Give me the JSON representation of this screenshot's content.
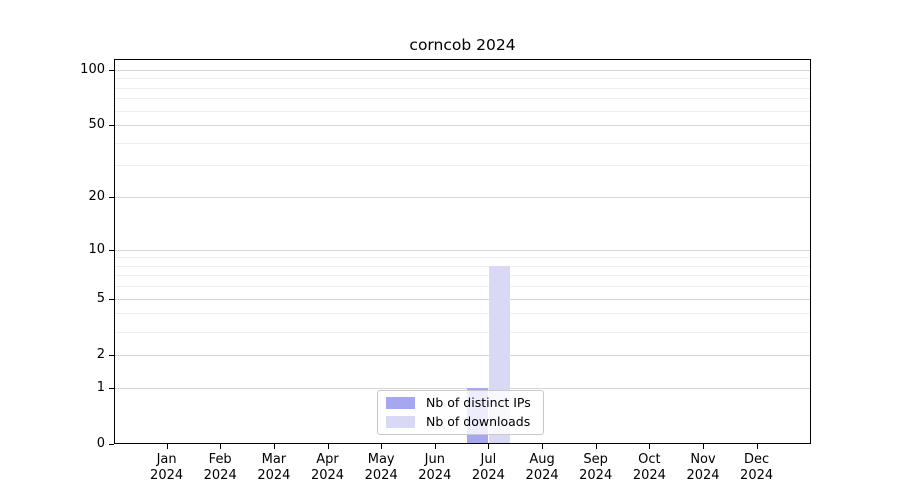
{
  "title": "corncob 2024",
  "chart_data": {
    "type": "bar",
    "title": "corncob 2024",
    "categories": [
      "Jan",
      "Feb",
      "Mar",
      "Apr",
      "May",
      "Jun",
      "Jul",
      "Aug",
      "Sep",
      "Oct",
      "Nov",
      "Dec"
    ],
    "year_label": "2024",
    "series": [
      {
        "name": "Nb of distinct IPs",
        "color": "#a7a7f0",
        "values": [
          0,
          0,
          0,
          0,
          0,
          0,
          1,
          0,
          0,
          0,
          0,
          0
        ]
      },
      {
        "name": "Nb of downloads",
        "color": "#d9d9f6",
        "values": [
          0,
          0,
          0,
          0,
          0,
          0,
          8,
          0,
          0,
          0,
          0,
          0
        ]
      }
    ],
    "xlabel": "",
    "ylabel": "",
    "yscale": "log10(1+y)",
    "ylim": [
      0,
      113
    ],
    "yticks": [
      0,
      1,
      2,
      5,
      10,
      20,
      50,
      100
    ],
    "minor_gridlines": [
      3,
      4,
      6,
      7,
      8,
      9,
      30,
      40,
      60,
      70,
      80,
      90
    ],
    "grid": true,
    "legend_position": "lower center",
    "legend_frame_color": "#c9c9c9",
    "axis_color": "#000000",
    "grid_major_color": "#d6d6d6",
    "grid_minor_color": "#efefef",
    "background_color": "#ffffff"
  }
}
